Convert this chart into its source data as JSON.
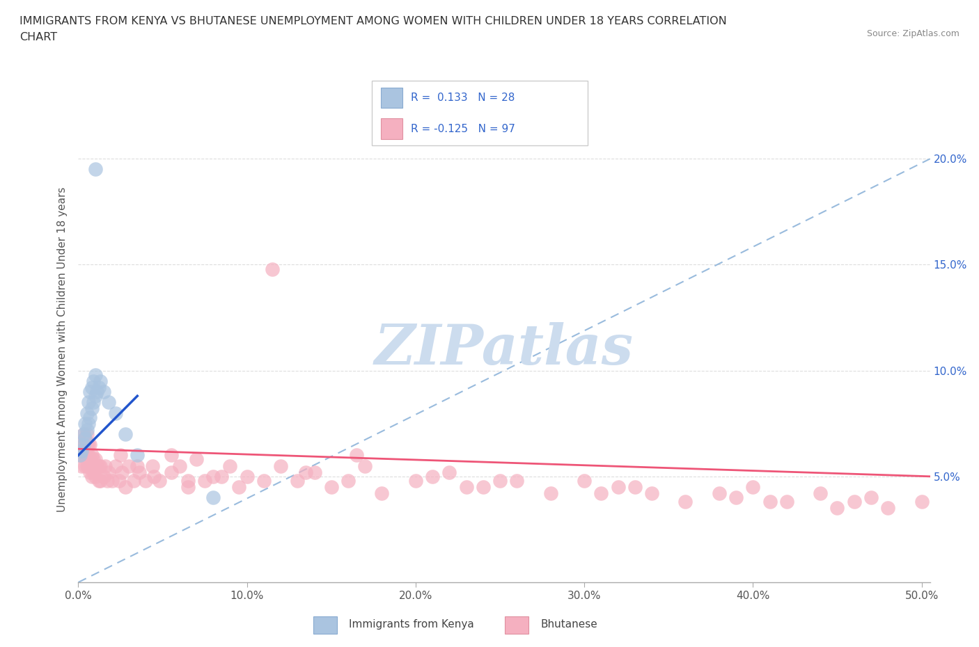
{
  "title_line1": "IMMIGRANTS FROM KENYA VS BHUTANESE UNEMPLOYMENT AMONG WOMEN WITH CHILDREN UNDER 18 YEARS CORRELATION",
  "title_line2": "CHART",
  "source": "Source: ZipAtlas.com",
  "ylabel": "Unemployment Among Women with Children Under 18 years",
  "xlim": [
    0.0,
    0.505
  ],
  "ylim": [
    0.0,
    0.22
  ],
  "xticks": [
    0.0,
    0.1,
    0.2,
    0.3,
    0.4,
    0.5
  ],
  "yticks": [
    0.0,
    0.05,
    0.1,
    0.15,
    0.2
  ],
  "xtick_labels": [
    "0.0%",
    "10.0%",
    "20.0%",
    "30.0%",
    "40.0%",
    "50.0%"
  ],
  "ytick_labels_right": [
    "",
    "5.0%",
    "10.0%",
    "15.0%",
    "20.0%"
  ],
  "kenya_R": 0.133,
  "kenya_N": 28,
  "bhutan_R": -0.125,
  "bhutan_N": 97,
  "kenya_scatter_color": "#aac4e0",
  "bhutan_scatter_color": "#f5b0c0",
  "kenya_line_color": "#2255cc",
  "bhutan_line_color": "#ee5577",
  "dashed_line_color": "#99bbdd",
  "grid_color": "#dddddd",
  "watermark_text": "ZIPatlas",
  "watermark_color": "#ccdcee",
  "background_color": "#ffffff",
  "legend_text_color": "#3366cc",
  "kenya_scatter_x": [
    0.001,
    0.002,
    0.003,
    0.003,
    0.004,
    0.004,
    0.005,
    0.005,
    0.006,
    0.006,
    0.007,
    0.007,
    0.008,
    0.008,
    0.009,
    0.009,
    0.01,
    0.01,
    0.011,
    0.012,
    0.013,
    0.015,
    0.018,
    0.022,
    0.028,
    0.035,
    0.08,
    0.01
  ],
  "kenya_scatter_y": [
    0.06,
    0.062,
    0.065,
    0.07,
    0.068,
    0.075,
    0.072,
    0.08,
    0.075,
    0.085,
    0.078,
    0.09,
    0.082,
    0.092,
    0.085,
    0.095,
    0.088,
    0.098,
    0.09,
    0.092,
    0.095,
    0.09,
    0.085,
    0.08,
    0.07,
    0.06,
    0.04,
    0.195
  ],
  "bhutan_scatter_x": [
    0.001,
    0.002,
    0.002,
    0.003,
    0.003,
    0.003,
    0.004,
    0.004,
    0.004,
    0.005,
    0.005,
    0.005,
    0.005,
    0.006,
    0.006,
    0.006,
    0.007,
    0.007,
    0.007,
    0.008,
    0.008,
    0.008,
    0.009,
    0.009,
    0.01,
    0.01,
    0.011,
    0.012,
    0.012,
    0.013,
    0.013,
    0.015,
    0.016,
    0.017,
    0.018,
    0.02,
    0.022,
    0.024,
    0.026,
    0.028,
    0.03,
    0.033,
    0.036,
    0.04,
    0.044,
    0.048,
    0.055,
    0.06,
    0.065,
    0.07,
    0.08,
    0.09,
    0.1,
    0.11,
    0.12,
    0.13,
    0.14,
    0.15,
    0.16,
    0.17,
    0.18,
    0.2,
    0.22,
    0.24,
    0.26,
    0.28,
    0.3,
    0.32,
    0.34,
    0.36,
    0.38,
    0.4,
    0.42,
    0.44,
    0.46,
    0.48,
    0.5,
    0.025,
    0.035,
    0.045,
    0.055,
    0.065,
    0.075,
    0.085,
    0.095,
    0.115,
    0.135,
    0.165,
    0.21,
    0.23,
    0.25,
    0.31,
    0.33,
    0.39,
    0.41,
    0.45,
    0.47
  ],
  "bhutan_scatter_y": [
    0.06,
    0.055,
    0.065,
    0.06,
    0.065,
    0.07,
    0.055,
    0.06,
    0.068,
    0.055,
    0.06,
    0.065,
    0.07,
    0.055,
    0.06,
    0.065,
    0.052,
    0.058,
    0.065,
    0.05,
    0.055,
    0.06,
    0.052,
    0.058,
    0.05,
    0.058,
    0.055,
    0.048,
    0.055,
    0.048,
    0.055,
    0.05,
    0.055,
    0.048,
    0.052,
    0.048,
    0.055,
    0.048,
    0.052,
    0.045,
    0.055,
    0.048,
    0.052,
    0.048,
    0.055,
    0.048,
    0.052,
    0.055,
    0.048,
    0.058,
    0.05,
    0.055,
    0.05,
    0.048,
    0.055,
    0.048,
    0.052,
    0.045,
    0.048,
    0.055,
    0.042,
    0.048,
    0.052,
    0.045,
    0.048,
    0.042,
    0.048,
    0.045,
    0.042,
    0.038,
    0.042,
    0.045,
    0.038,
    0.042,
    0.038,
    0.035,
    0.038,
    0.06,
    0.055,
    0.05,
    0.06,
    0.045,
    0.048,
    0.05,
    0.045,
    0.148,
    0.052,
    0.06,
    0.05,
    0.045,
    0.048,
    0.042,
    0.045,
    0.04,
    0.038,
    0.035,
    0.04
  ]
}
